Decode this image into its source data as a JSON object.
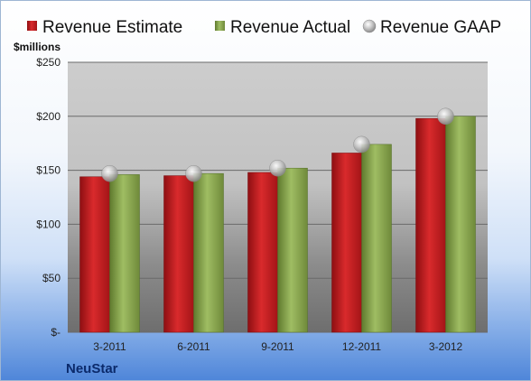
{
  "chart_data": {
    "type": "bar",
    "unit_label": "$millions",
    "company": "NeuStar",
    "categories": [
      "3-2011",
      "6-2011",
      "9-2011",
      "12-2011",
      "3-2012"
    ],
    "series": [
      {
        "name": "Revenue Estimate",
        "kind": "bar",
        "color": "#c8191e",
        "values": [
          144,
          145,
          148,
          166,
          198
        ]
      },
      {
        "name": "Revenue Actual",
        "kind": "bar",
        "color": "#8aa552",
        "values": [
          146,
          147,
          152,
          174,
          200
        ]
      },
      {
        "name": "Revenue GAAP",
        "kind": "marker",
        "color": "#b9b9b9",
        "values": [
          147,
          147,
          152,
          174,
          200
        ]
      }
    ],
    "ylim": [
      0,
      250
    ],
    "yticks": [
      0,
      50,
      100,
      150,
      200,
      250
    ],
    "ytick_labels": [
      "$-",
      "$50",
      "$100",
      "$150",
      "$200",
      "$250"
    ],
    "grid": true,
    "legend_position": "top"
  }
}
